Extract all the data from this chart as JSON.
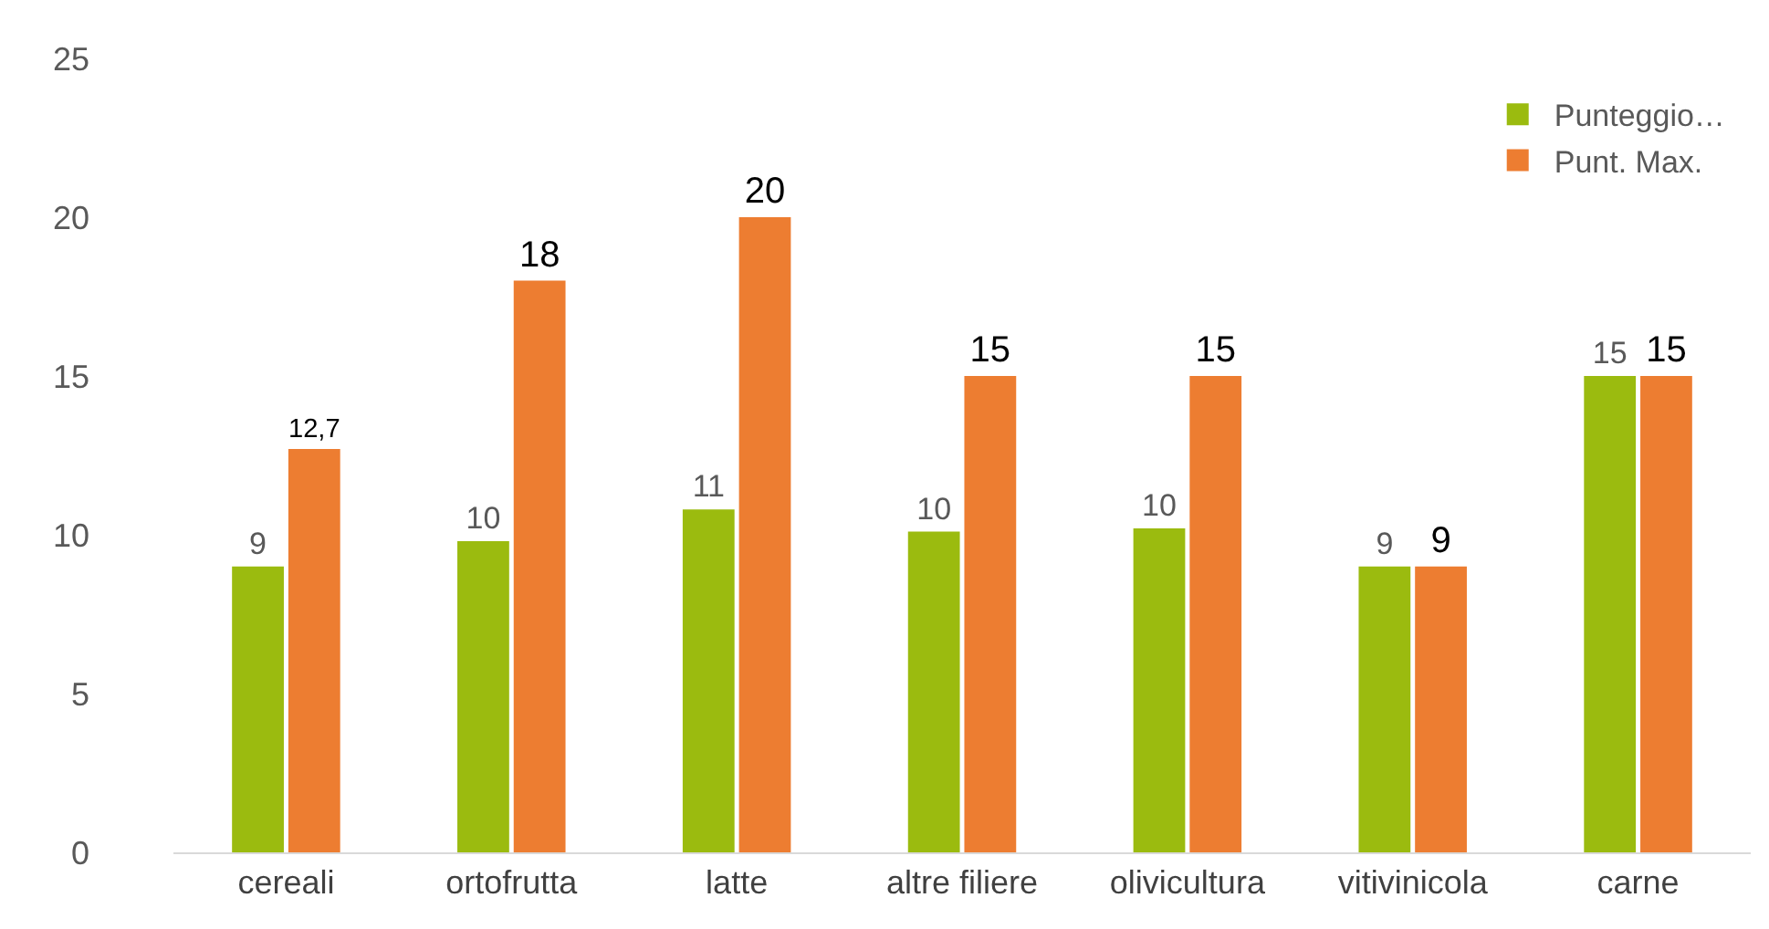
{
  "chart_data": {
    "type": "bar",
    "categories": [
      "cereali",
      "ortofrutta",
      "latte",
      "altre filiere",
      "olivicultura",
      "vitivinicola",
      "carne"
    ],
    "series": [
      {
        "name": "Punteggio…",
        "color": "#9bbb0f",
        "values": [
          9,
          9.8,
          10.8,
          10.1,
          10.2,
          9,
          15
        ],
        "value_labels": [
          "9",
          "10",
          "11",
          "10",
          "10",
          "9",
          "15"
        ]
      },
      {
        "name": "Punt. Max.",
        "color": "#ed7d31",
        "values": [
          12.7,
          18,
          20,
          15,
          15,
          9,
          15
        ],
        "value_labels": [
          "12,7",
          "18",
          "20",
          "15",
          "15",
          "9",
          "15"
        ]
      }
    ],
    "ylim": [
      0,
      25
    ],
    "yticks": [
      0,
      5,
      10,
      15,
      20,
      25
    ],
    "grid": false,
    "legend": "top right"
  }
}
